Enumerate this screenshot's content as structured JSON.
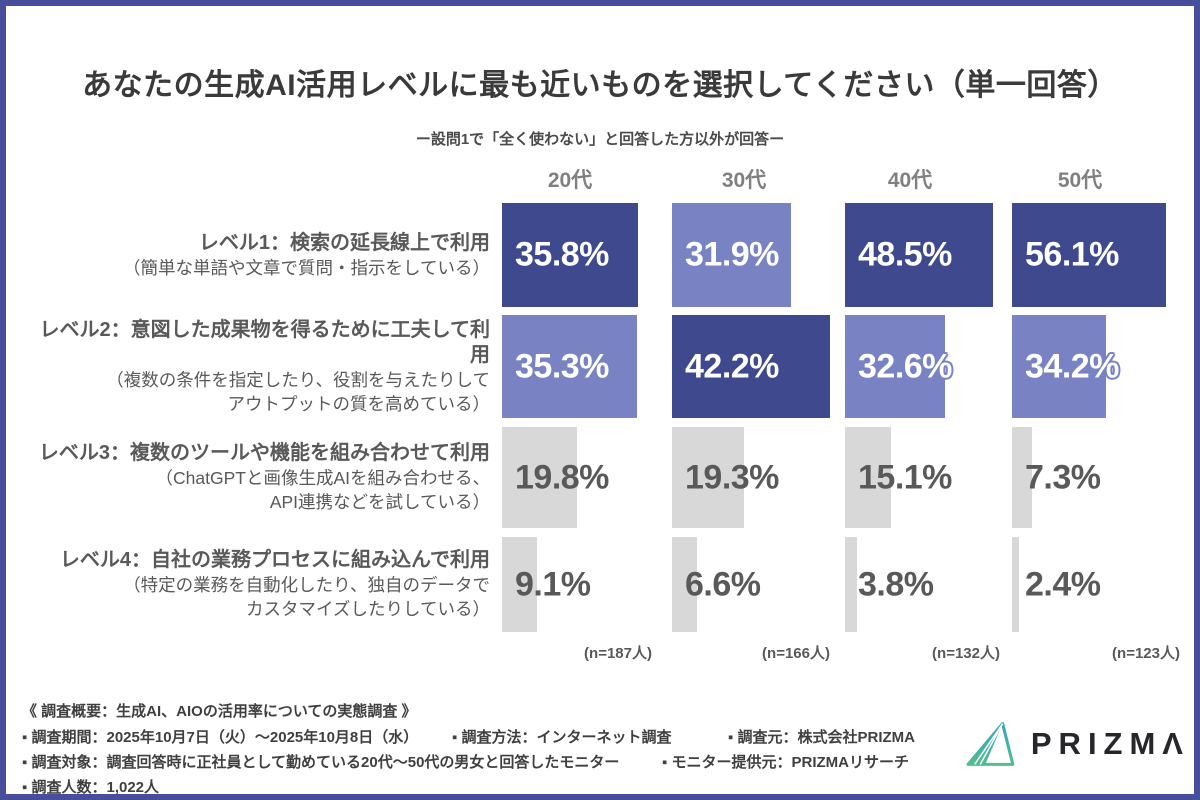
{
  "page": {
    "title": "あなたの生成AI活用レベルに最も近いものを選択してください（単一回答）",
    "subtitle": "ー設問1で「全く使わない」と回答した方以外が回答ー"
  },
  "colors": {
    "frame_border": "#474f9c",
    "bar_dark": "#3e498e",
    "bar_light": "#7983c3",
    "bar_gray": "#d8d8d8",
    "value_text_white": "#ffffff",
    "value_text_gray": "#595959",
    "column_header_text": "#808080",
    "row_label_text": "#595959",
    "footer_text": "#3f3f3f",
    "logo_gradient_top": "#35a2c6",
    "logo_gradient_bottom": "#52bd8d"
  },
  "chart_data": {
    "type": "bar",
    "orientation": "horizontal",
    "categories": [
      "20代",
      "30代",
      "40代",
      "50代"
    ],
    "sample_sizes": [
      "(n=187人)",
      "(n=166人)",
      "(n=132人)",
      "(n=123人)"
    ],
    "legend_position": "none",
    "grid": false,
    "rows": [
      {
        "title": "レベル1：検索の延長線上で利用",
        "subtitle_lines": [
          "（簡単な単語や文章で質問・指示をしている）"
        ],
        "values": [
          35.8,
          31.9,
          48.5,
          56.1
        ],
        "labels": [
          "35.8%",
          "31.9%",
          "48.5%",
          "56.1%"
        ]
      },
      {
        "title": "レベル2：意図した成果物を得るために工夫して利用",
        "subtitle_lines": [
          "（複数の条件を指定したり、役割を与えたりして",
          "アウトプットの質を高めている）"
        ],
        "values": [
          35.3,
          42.2,
          32.6,
          34.2
        ],
        "labels": [
          "35.3%",
          "42.2%",
          "32.6%",
          "34.2%"
        ]
      },
      {
        "title": "レベル3：複数のツールや機能を組み合わせて利用",
        "subtitle_lines": [
          "（ChatGPTと画像生成AIを組み合わせる、",
          "API連携などを試している）"
        ],
        "values": [
          19.8,
          19.3,
          15.1,
          7.3
        ],
        "labels": [
          "19.8%",
          "19.3%",
          "15.1%",
          "7.3%"
        ]
      },
      {
        "title": "レベル4：自社の業務プロセスに組み込んで利用",
        "subtitle_lines": [
          "（特定の業務を自動化したり、独自のデータで",
          "カスタマイズしたりしている）"
        ],
        "values": [
          9.1,
          6.6,
          3.8,
          2.4
        ],
        "labels": [
          "9.1%",
          "6.6%",
          "3.8%",
          "2.4%"
        ]
      }
    ]
  },
  "footer": {
    "survey_title": "《 調査概要：生成AI、AIOの活用率についての実態調査 》",
    "lines": [
      [
        "▪ 調査期間：2025年10月7日（火）～2025年10月8日（水）",
        "▪ 調査方法：インターネット調査",
        "▪ 調査元：株式会社PRIZMA"
      ],
      [
        "▪ 調査対象：調査回答時に正社員として勤めている20代～50代の男女と回答したモニター",
        "▪ モニター提供元：PRIZMAリサーチ"
      ],
      [
        "▪ 調査人数：1,022人"
      ]
    ]
  },
  "logo": {
    "text": "PRIZMΛ"
  }
}
